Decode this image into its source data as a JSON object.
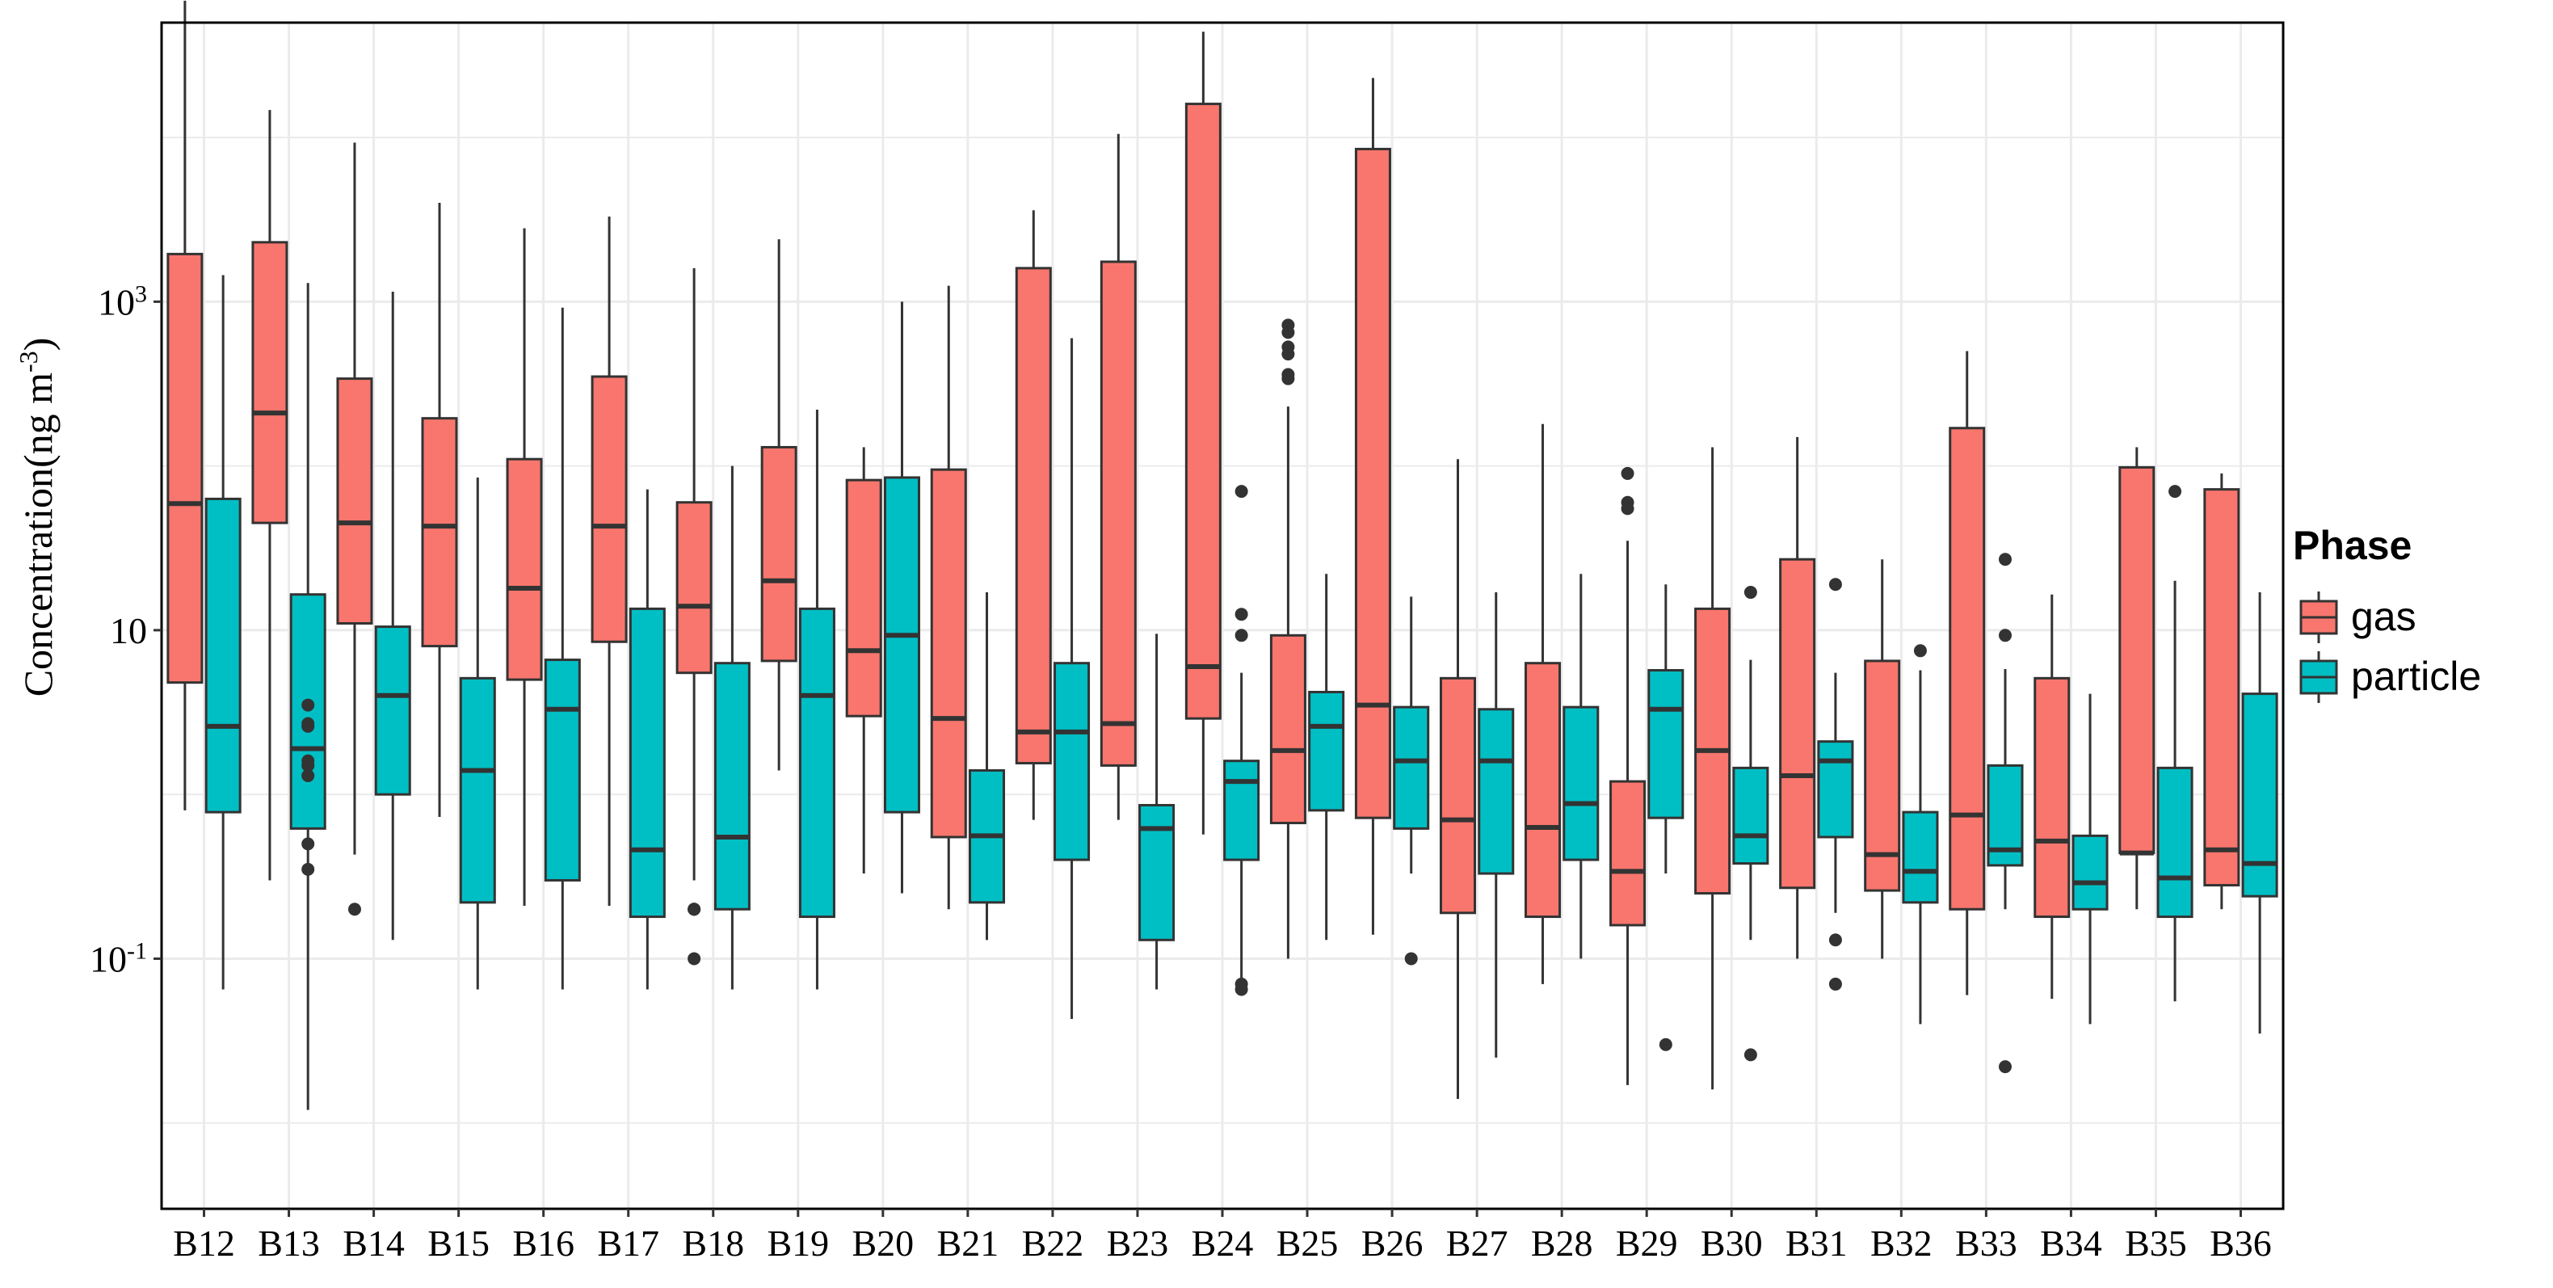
{
  "chart_data": {
    "type": "boxplot",
    "yscale": "log10",
    "ylim": [
      0.003,
      50000
    ],
    "ylabel": "Concentration(ng m-3)",
    "ylabel_parts": {
      "main": "Concentration(ng m",
      "sup": "-3",
      "close": ")"
    },
    "yticks": [
      {
        "value": 0.1,
        "base": "10",
        "exp": "-1"
      },
      {
        "value": 10,
        "base": "10",
        "exp": ""
      },
      {
        "value": 1000,
        "base": "10",
        "exp": "3"
      }
    ],
    "grid": true,
    "legend": {
      "title": "Phase",
      "placement": "right",
      "entries": [
        {
          "label": "gas",
          "color": "#F8766D"
        },
        {
          "label": "particle",
          "color": "#00BFC4"
        }
      ]
    },
    "categories": [
      "B12",
      "B13",
      "B14",
      "B15",
      "B16",
      "B17",
      "B18",
      "B19",
      "B20",
      "B21",
      "B22",
      "B23",
      "B24",
      "B25",
      "B26",
      "B27",
      "B28",
      "B29",
      "B30",
      "B31",
      "B32",
      "B33",
      "B34",
      "B35",
      "B36"
    ],
    "series": [
      {
        "name": "gas",
        "color": "#F8766D",
        "boxes": [
          {
            "lo": 0.8,
            "q1": 4.8,
            "med": 59,
            "q3": 1950,
            "hi": 68000,
            "out": []
          },
          {
            "lo": 0.3,
            "q1": 45,
            "med": 210,
            "q3": 2300,
            "hi": 14700,
            "out": []
          },
          {
            "lo": 0.43,
            "q1": 11,
            "med": 45,
            "q3": 340,
            "hi": 9300,
            "out": [
              0.2
            ]
          },
          {
            "lo": 0.73,
            "q1": 8,
            "med": 43,
            "q3": 195,
            "hi": 4000,
            "out": []
          },
          {
            "lo": 0.21,
            "q1": 5,
            "med": 18,
            "q3": 110,
            "hi": 2800,
            "out": []
          },
          {
            "lo": 0.21,
            "q1": 8.5,
            "med": 43,
            "q3": 350,
            "hi": 3300,
            "out": []
          },
          {
            "lo": 0.3,
            "q1": 5.5,
            "med": 14,
            "q3": 60,
            "hi": 1600,
            "out": [
              0.2,
              0.2,
              0.2,
              0.1
            ]
          },
          {
            "lo": 1.4,
            "q1": 6.5,
            "med": 20,
            "q3": 130,
            "hi": 2400,
            "out": []
          },
          {
            "lo": 0.33,
            "q1": 3,
            "med": 7.5,
            "q3": 82,
            "hi": 130,
            "out": []
          },
          {
            "lo": 0.2,
            "q1": 0.55,
            "med": 2.9,
            "q3": 95,
            "hi": 1250,
            "out": []
          },
          {
            "lo": 0.7,
            "q1": 1.55,
            "med": 2.4,
            "q3": 1600,
            "hi": 3600,
            "out": []
          },
          {
            "lo": 0.7,
            "q1": 1.5,
            "med": 2.7,
            "q3": 1750,
            "hi": 10500,
            "out": []
          },
          {
            "lo": 0.57,
            "q1": 2.9,
            "med": 6,
            "q3": 16000,
            "hi": 44000,
            "out": []
          },
          {
            "lo": 0.1,
            "q1": 0.67,
            "med": 1.85,
            "q3": 9.3,
            "hi": 230,
            "out": [
              650,
              530,
              480,
              360,
              340,
              720
            ]
          },
          {
            "lo": 0.14,
            "q1": 0.72,
            "med": 3.5,
            "q3": 8500,
            "hi": 23000,
            "out": []
          },
          {
            "lo": 0.014,
            "q1": 0.19,
            "med": 0.7,
            "q3": 5.1,
            "hi": 110,
            "out": []
          },
          {
            "lo": 0.07,
            "q1": 0.18,
            "med": 0.63,
            "q3": 6.3,
            "hi": 180,
            "out": []
          },
          {
            "lo": 0.017,
            "q1": 0.16,
            "med": 0.34,
            "q3": 1.2,
            "hi": 35,
            "out": [
              90,
              60,
              55
            ]
          },
          {
            "lo": 0.016,
            "q1": 0.25,
            "med": 1.85,
            "q3": 13.5,
            "hi": 130,
            "out": []
          },
          {
            "lo": 0.1,
            "q1": 0.27,
            "med": 1.3,
            "q3": 27,
            "hi": 150,
            "out": []
          },
          {
            "lo": 0.1,
            "q1": 0.26,
            "med": 0.43,
            "q3": 6.5,
            "hi": 27,
            "out": []
          },
          {
            "lo": 0.06,
            "q1": 0.2,
            "med": 0.75,
            "q3": 170,
            "hi": 500,
            "out": []
          },
          {
            "lo": 0.057,
            "q1": 0.18,
            "med": 0.52,
            "q3": 5.1,
            "hi": 16.5,
            "out": []
          },
          {
            "lo": 0.2,
            "q1": 0.44,
            "med": 0.44,
            "q3": 98,
            "hi": 130,
            "out": []
          },
          {
            "lo": 0.2,
            "q1": 0.28,
            "med": 0.46,
            "q3": 72,
            "hi": 90,
            "out": []
          }
        ]
      },
      {
        "name": "particle",
        "color": "#00BFC4",
        "boxes": [
          {
            "lo": 0.065,
            "q1": 0.78,
            "med": 2.6,
            "q3": 63,
            "hi": 1450,
            "out": []
          },
          {
            "lo": 0.012,
            "q1": 0.62,
            "med": 1.9,
            "q3": 16.5,
            "hi": 1300,
            "out": [
              0.35,
              0.5,
              1.3,
              1.5,
              1.6,
              2.6,
              3.5,
              2.7
            ]
          },
          {
            "lo": 0.13,
            "q1": 1.0,
            "med": 4,
            "q3": 10.5,
            "hi": 1150,
            "out": []
          },
          {
            "lo": 0.065,
            "q1": 0.22,
            "med": 1.4,
            "q3": 5.1,
            "hi": 85,
            "out": []
          },
          {
            "lo": 0.065,
            "q1": 0.3,
            "med": 3.3,
            "q3": 6.6,
            "hi": 920,
            "out": []
          },
          {
            "lo": 0.065,
            "q1": 0.18,
            "med": 0.46,
            "q3": 13.5,
            "hi": 72,
            "out": []
          },
          {
            "lo": 0.065,
            "q1": 0.2,
            "med": 0.55,
            "q3": 6.3,
            "hi": 100,
            "out": []
          },
          {
            "lo": 0.065,
            "q1": 0.18,
            "med": 4,
            "q3": 13.5,
            "hi": 220,
            "out": []
          },
          {
            "lo": 0.25,
            "q1": 0.78,
            "med": 9.3,
            "q3": 85,
            "hi": 1000,
            "out": []
          },
          {
            "lo": 0.13,
            "q1": 0.22,
            "med": 0.56,
            "q3": 1.4,
            "hi": 17,
            "out": []
          },
          {
            "lo": 0.043,
            "q1": 0.4,
            "med": 2.4,
            "q3": 6.3,
            "hi": 600,
            "out": []
          },
          {
            "lo": 0.065,
            "q1": 0.13,
            "med": 0.62,
            "q3": 0.86,
            "hi": 9.5,
            "out": []
          },
          {
            "lo": 0.065,
            "q1": 0.4,
            "med": 1.2,
            "q3": 1.6,
            "hi": 5.5,
            "out": [
              0.065,
              0.07,
              9.3,
              12.5,
              70
            ]
          },
          {
            "lo": 0.13,
            "q1": 0.8,
            "med": 2.6,
            "q3": 4.2,
            "hi": 22,
            "out": []
          },
          {
            "lo": 0.33,
            "q1": 0.62,
            "med": 1.6,
            "q3": 3.4,
            "hi": 16,
            "out": [
              0.1
            ]
          },
          {
            "lo": 0.025,
            "q1": 0.33,
            "med": 1.6,
            "q3": 3.3,
            "hi": 17,
            "out": []
          },
          {
            "lo": 0.1,
            "q1": 0.4,
            "med": 0.88,
            "q3": 3.4,
            "hi": 22,
            "out": []
          },
          {
            "lo": 0.33,
            "q1": 0.72,
            "med": 3.3,
            "q3": 5.7,
            "hi": 19,
            "out": [
              0.03
            ]
          },
          {
            "lo": 0.13,
            "q1": 0.38,
            "med": 0.56,
            "q3": 1.45,
            "hi": 6.6,
            "out": [
              0.026,
              17
            ]
          },
          {
            "lo": 0.19,
            "q1": 0.55,
            "med": 1.6,
            "q3": 2.1,
            "hi": 5.5,
            "out": [
              0.07,
              0.13,
              19
            ]
          },
          {
            "lo": 0.04,
            "q1": 0.22,
            "med": 0.34,
            "q3": 0.78,
            "hi": 5.7,
            "out": [
              7.5
            ]
          },
          {
            "lo": 0.2,
            "q1": 0.37,
            "med": 0.46,
            "q3": 1.5,
            "hi": 5.8,
            "out": [
              0.022,
              9.3,
              27
            ]
          },
          {
            "lo": 0.04,
            "q1": 0.2,
            "med": 0.29,
            "q3": 0.56,
            "hi": 4.1,
            "out": []
          },
          {
            "lo": 0.055,
            "q1": 0.18,
            "med": 0.31,
            "q3": 1.45,
            "hi": 20,
            "out": [
              70
            ]
          },
          {
            "lo": 0.035,
            "q1": 0.24,
            "med": 0.38,
            "q3": 4.1,
            "hi": 17,
            "out": []
          }
        ]
      }
    ]
  }
}
